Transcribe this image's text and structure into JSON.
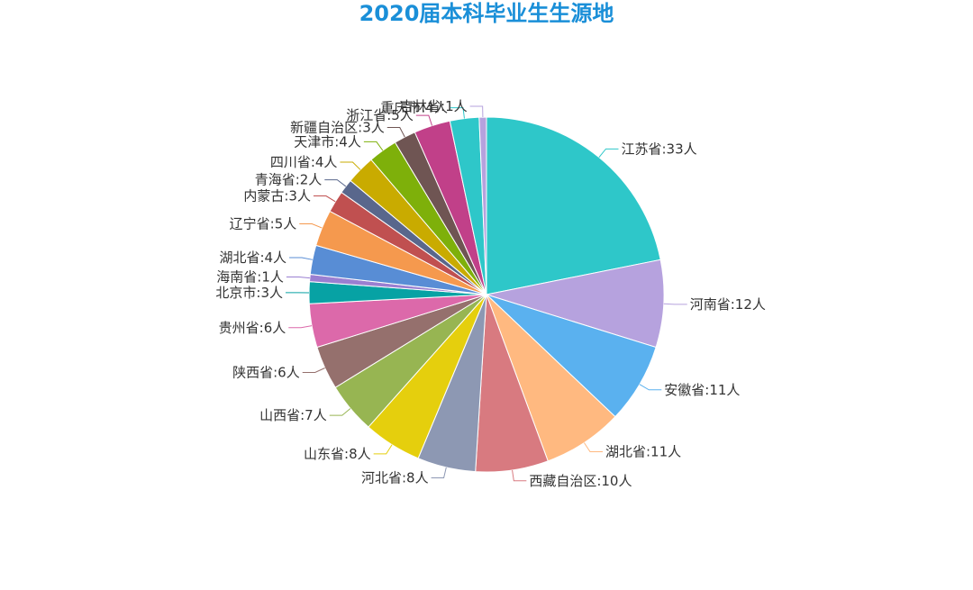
{
  "chart_data": {
    "type": "pie",
    "title": "2020届本科毕业生生源地",
    "title_color": "#1a8fd8",
    "categories": [
      "江苏省",
      "河南省",
      "安徽省",
      "湖北省",
      "西藏自治区",
      "河北省",
      "山东省",
      "山西省",
      "陕西省",
      "贵州省",
      "北京市",
      "海南省",
      "湖北省",
      "辽宁省",
      "内蒙古",
      "青海省",
      "四川省",
      "天津市",
      "新疆自治区",
      "浙江省",
      "重庆市",
      "吉林省"
    ],
    "values": [
      33,
      12,
      11,
      11,
      10,
      8,
      8,
      7,
      6,
      6,
      3,
      1,
      4,
      5,
      3,
      2,
      4,
      4,
      3,
      5,
      4,
      1
    ],
    "unit": "人",
    "labels": [
      "江苏省:33人",
      "河南省:12人",
      "安徽省:11人",
      "湖北省:11人",
      "西藏自治区:10人",
      "河北省:8人",
      "山东省:8人",
      "山西省:7人",
      "陕西省:6人",
      "贵州省:6人",
      "北京市:3人",
      "海南省:1人",
      "湖北省:4人",
      "辽宁省:5人",
      "内蒙古:3人",
      "青海省:2人",
      "四川省:4人",
      "天津市:4人",
      "新疆自治区:3人",
      "浙江省:5人",
      "重庆市:4人",
      "吉林省:1人"
    ],
    "colors": [
      "#2ec7c9",
      "#b6a2de",
      "#5ab1ef",
      "#ffb980",
      "#d87a80",
      "#8d98b3",
      "#e5cf0d",
      "#97b552",
      "#95706d",
      "#dc69aa",
      "#07a2a4",
      "#9a7fd1",
      "#588dd5",
      "#f5994e",
      "#c05050",
      "#59678c",
      "#c9ab00",
      "#7eb00a",
      "#6f5553",
      "#c14089",
      "#2ec7c9",
      "#b6a2de"
    ],
    "start": "12 o'clock",
    "direction": "clockwise",
    "legend": "none"
  }
}
